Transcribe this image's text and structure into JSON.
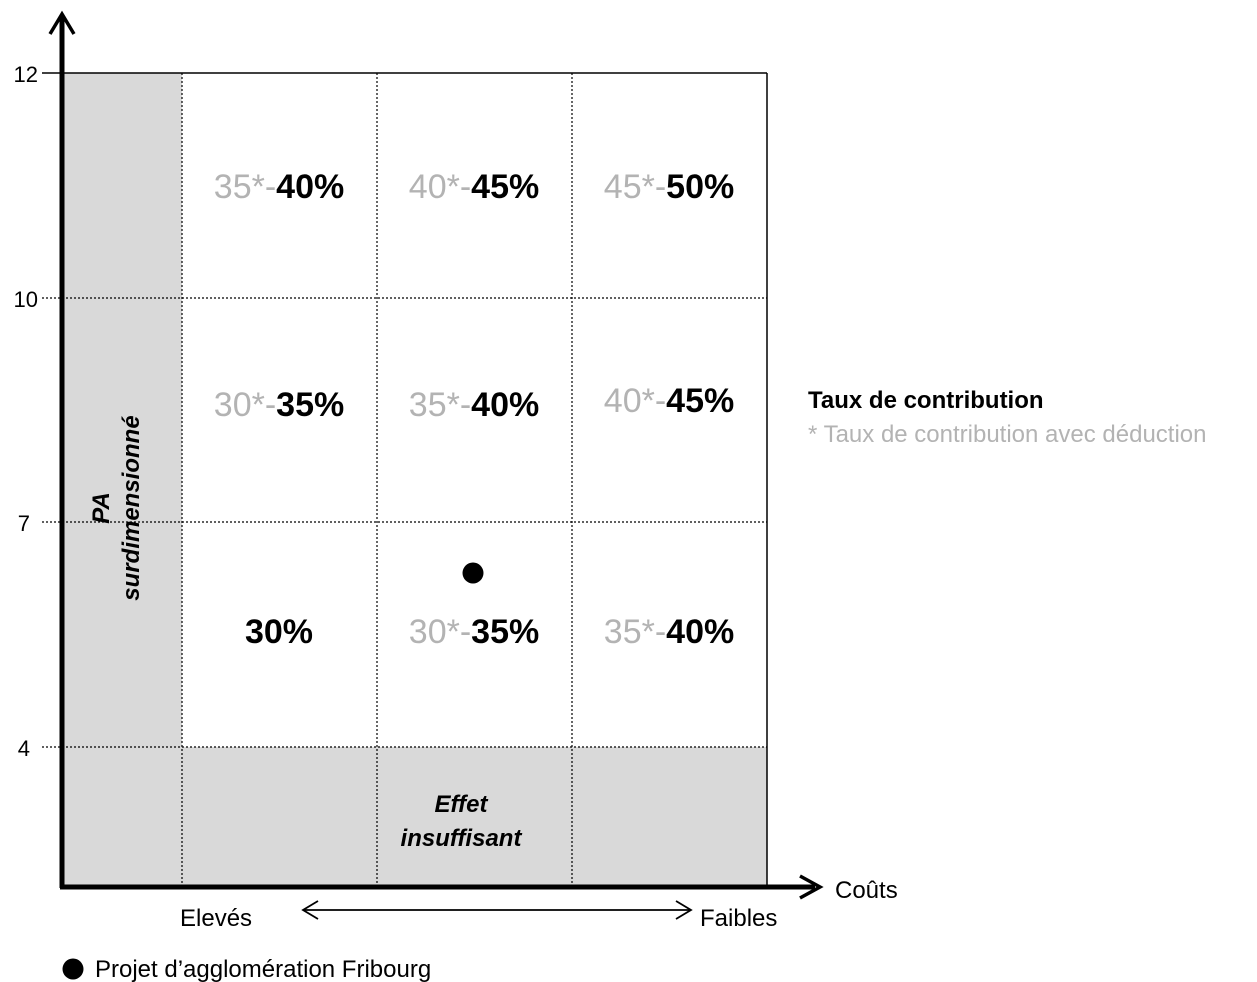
{
  "y_axis": {
    "ticks": [
      "12",
      "10",
      "7",
      "4"
    ]
  },
  "x_axis": {
    "label": "Coûts",
    "left_label": "Elevés",
    "right_label": "Faibles"
  },
  "zones": {
    "oversized": {
      "line1": "PA",
      "line2": "surdimensionné"
    },
    "insufficient": {
      "line1": "Effet",
      "line2": "insuffisant"
    }
  },
  "cells": [
    {
      "deduction": "35*-",
      "rate": "40%"
    },
    {
      "deduction": "40*-",
      "rate": "45%"
    },
    {
      "deduction": "45*-",
      "rate": "50%"
    },
    {
      "deduction": "30*-",
      "rate": "35%"
    },
    {
      "deduction": "35*-",
      "rate": "40%"
    },
    {
      "deduction": "40*-",
      "rate": "45%"
    },
    {
      "deduction": "",
      "rate": "30%"
    },
    {
      "deduction": "30*-",
      "rate": "35%"
    },
    {
      "deduction": "35*-",
      "rate": "40%"
    }
  ],
  "legend": {
    "title": "Taux de contribution",
    "note": "* Taux de contribution avec déduction",
    "marker_label": "Projet d’agglomération Fribourg"
  },
  "colors": {
    "zone_fill": "#d9d9d9",
    "deduction_text": "#b3b3b3",
    "axis": "#000000"
  }
}
